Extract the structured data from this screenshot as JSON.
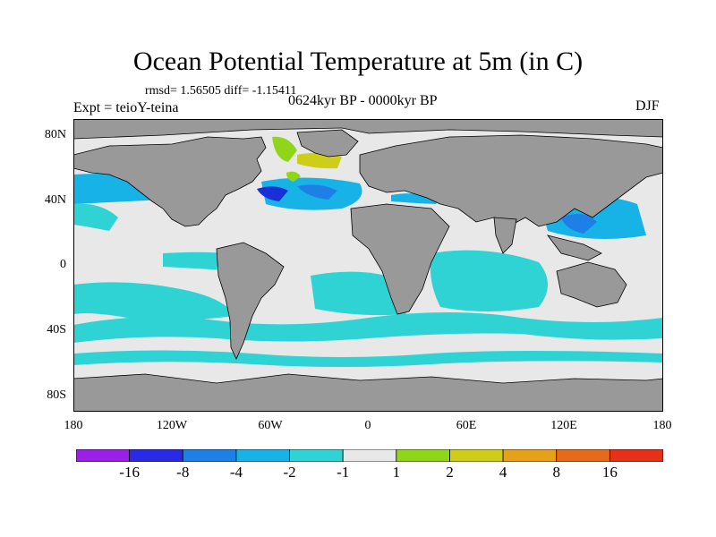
{
  "title": "Ocean Potential Temperature at 5m (in C)",
  "stats": "rmsd= 1.56505 diff= -1.15411",
  "experiment": "Expt = teioY-teina",
  "period": "0624kyr BP - 0000kyr BP",
  "season": "DJF",
  "colors": {
    "land": "#999999",
    "ocean_neutral": "#e8e8e8",
    "cyan": "#2fd3d3",
    "light_blue": "#17b2e6",
    "mid_blue": "#1e7fe6",
    "dark_blue": "#1a2fd6",
    "green": "#8fd61a",
    "olive": "#cdcd1a"
  },
  "lat_labels": [
    "80N",
    "40N",
    "0",
    "40S",
    "80S"
  ],
  "lon_labels": [
    "180",
    "120W",
    "60W",
    "0",
    "60E",
    "120E",
    "180"
  ],
  "colorbar": {
    "labels": [
      "-16",
      "-8",
      "-4",
      "-2",
      "-1",
      "1",
      "2",
      "4",
      "8",
      "16"
    ],
    "colors": [
      "#9a20e6",
      "#2a2ae6",
      "#1e7fe6",
      "#17b2e6",
      "#2fd3d3",
      "#e8e8e8",
      "#8fd61a",
      "#cdcd1a",
      "#e6a01a",
      "#e66a1a",
      "#e6301a"
    ]
  }
}
